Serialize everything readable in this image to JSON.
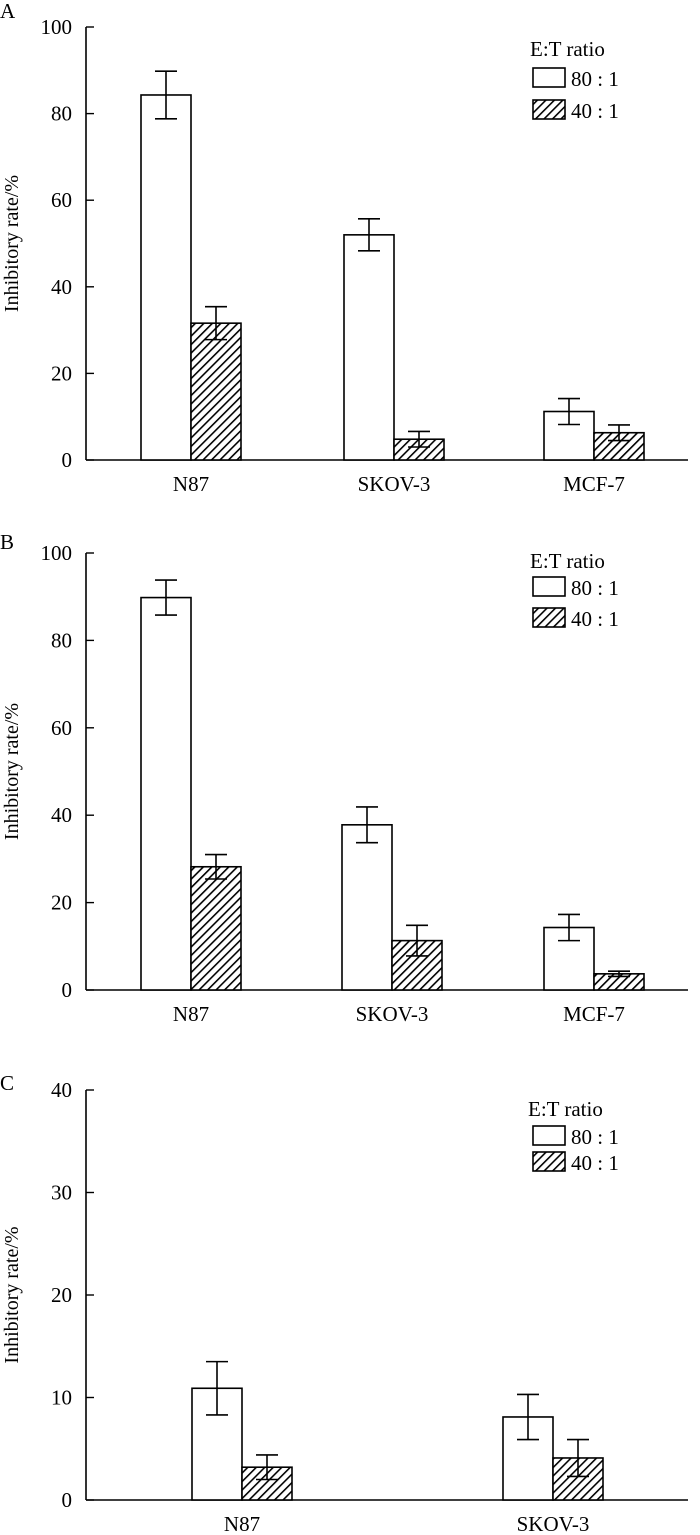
{
  "figure": {
    "width": 700,
    "height": 1535
  },
  "colors": {
    "axis": "#000000",
    "bar_open_fill": "#ffffff",
    "hatch": "#000000"
  },
  "chart_data": [
    {
      "panel_label": "A",
      "type": "bar",
      "ylabel": "Inhibitory rate/%",
      "xlabel": "",
      "ylim": [
        0,
        100
      ],
      "yticks": [
        "0",
        "20",
        "40",
        "60",
        "80",
        "100"
      ],
      "categories": [
        "N87",
        "SKOV-3",
        "MCF-7"
      ],
      "legend_title": "E:T ratio",
      "legend_position": "top-right",
      "series": [
        {
          "name": "80 : 1",
          "pattern": "open",
          "values": [
            84.3,
            52.0,
            11.2
          ],
          "errors": [
            5.5,
            3.7,
            3.0
          ]
        },
        {
          "name": "40 : 1",
          "pattern": "hatched",
          "values": [
            31.6,
            4.8,
            6.3
          ],
          "errors": [
            3.8,
            1.8,
            1.8
          ]
        }
      ]
    },
    {
      "panel_label": "B",
      "type": "bar",
      "ylabel": "Inhibitory rate/%",
      "xlabel": "",
      "ylim": [
        0,
        100
      ],
      "yticks": [
        "0",
        "20",
        "40",
        "60",
        "80",
        "100"
      ],
      "categories": [
        "N87",
        "SKOV-3",
        "MCF-7"
      ],
      "legend_title": "E:T ratio",
      "legend_position": "top-right",
      "series": [
        {
          "name": "80 : 1",
          "pattern": "open",
          "values": [
            89.8,
            37.8,
            14.3
          ],
          "errors": [
            4.0,
            4.1,
            3.0
          ]
        },
        {
          "name": "40 : 1",
          "pattern": "hatched",
          "values": [
            28.2,
            11.3,
            3.7
          ],
          "errors": [
            2.8,
            3.5,
            0.6
          ]
        }
      ]
    },
    {
      "panel_label": "C",
      "type": "bar",
      "ylabel": "Inhibitory rate/%",
      "xlabel": "",
      "ylim": [
        0,
        40
      ],
      "yticks": [
        "0",
        "10",
        "20",
        "30",
        "40"
      ],
      "categories": [
        "N87",
        "SKOV-3"
      ],
      "legend_title": "E:T ratio",
      "legend_position": "top-right",
      "series": [
        {
          "name": "80 : 1",
          "pattern": "open",
          "values": [
            10.9,
            8.1
          ],
          "errors": [
            2.6,
            2.2
          ]
        },
        {
          "name": "40 : 1",
          "pattern": "hatched",
          "values": [
            3.2,
            4.1
          ],
          "errors": [
            1.2,
            1.8
          ]
        }
      ]
    }
  ]
}
